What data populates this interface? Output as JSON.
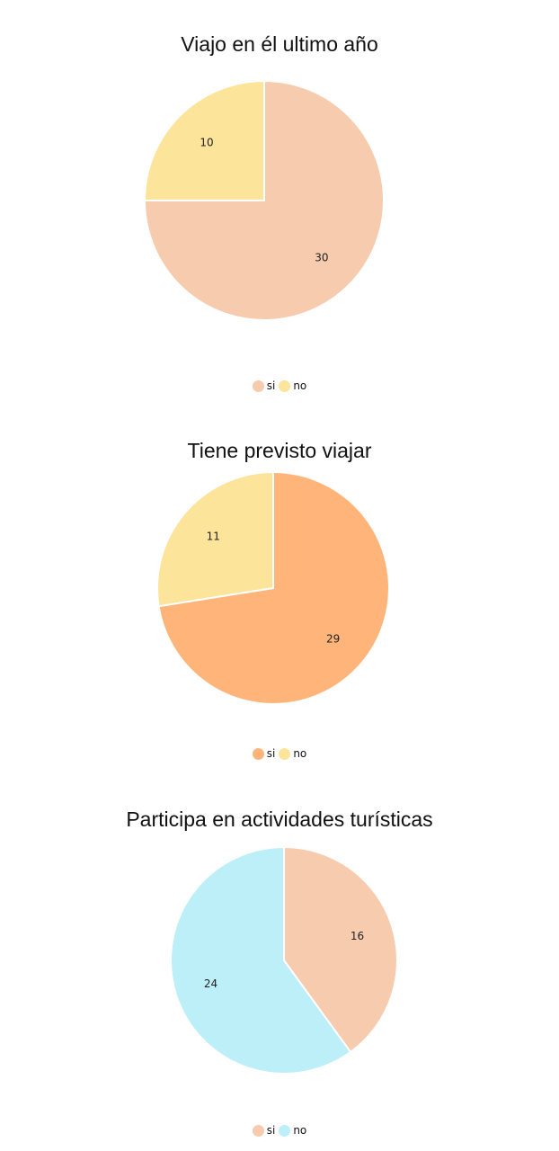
{
  "chart_data": [
    {
      "type": "pie",
      "title": "Viajo en él ultimo año",
      "slices": [
        {
          "label": "si",
          "value": 30,
          "color": "#F7CBAE"
        },
        {
          "label": "no",
          "value": 10,
          "color": "#FCE49A"
        }
      ],
      "legend": [
        "si",
        "no"
      ],
      "legend_position": "bottom"
    },
    {
      "type": "pie",
      "title": "Tiene previsto viajar",
      "slices": [
        {
          "label": "si",
          "value": 29,
          "color": "#FFB57A"
        },
        {
          "label": "no",
          "value": 11,
          "color": "#FCE49A"
        }
      ],
      "legend": [
        "si",
        "no"
      ],
      "legend_position": "bottom"
    },
    {
      "type": "pie",
      "title": "Participa en actividades turísticas",
      "slices": [
        {
          "label": "si",
          "value": 16,
          "color": "#F7CBAE"
        },
        {
          "label": "no",
          "value": 24,
          "color": "#BDEFF8"
        }
      ],
      "legend": [
        "si",
        "no"
      ],
      "legend_position": "bottom"
    }
  ]
}
